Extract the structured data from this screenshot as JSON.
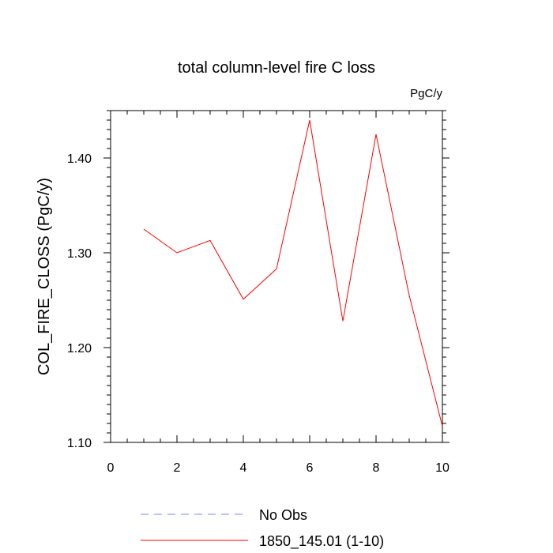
{
  "chart_data": {
    "type": "line",
    "title": "total column-level fire C loss",
    "units_label": "PgC/y",
    "ylabel": "COL_FIRE_CLOSS  (PgC/y)",
    "xlabel": "",
    "xlim": [
      0,
      10
    ],
    "ylim": [
      1.1,
      1.45
    ],
    "x_ticks": [
      0,
      2,
      4,
      6,
      8,
      10
    ],
    "x_tick_labels": [
      "0",
      "2",
      "4",
      "6",
      "8",
      "10"
    ],
    "y_ticks": [
      1.1,
      1.2,
      1.3,
      1.4
    ],
    "y_tick_labels": [
      "1.10",
      "1.20",
      "1.30",
      "1.40"
    ],
    "grid": false,
    "legend_placement": "bottom",
    "series": [
      {
        "name": "No Obs",
        "color": "#8080ff",
        "dash": "dashed",
        "x": [],
        "values": []
      },
      {
        "name": "1850_145.01 (1-10)",
        "color": "#ff0000",
        "dash": "solid",
        "x": [
          1,
          2,
          3,
          4,
          5,
          6,
          7,
          8,
          9,
          10
        ],
        "values": [
          1.325,
          1.3,
          1.313,
          1.251,
          1.283,
          1.44,
          1.228,
          1.425,
          1.255,
          1.117
        ]
      }
    ]
  }
}
